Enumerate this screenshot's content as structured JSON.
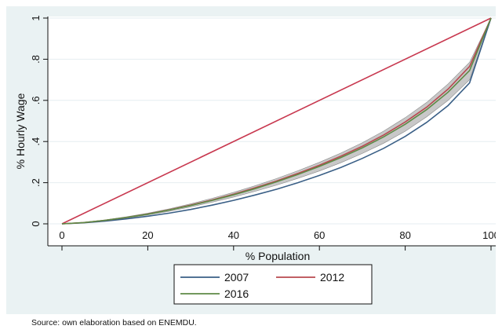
{
  "chart_data": {
    "type": "line",
    "title": "",
    "xlabel": "% Population",
    "ylabel": "% Hourly Wage",
    "xlim": [
      0,
      100
    ],
    "ylim": [
      0,
      1
    ],
    "x_ticks": [
      {
        "value": 0,
        "label": "0"
      },
      {
        "value": 20,
        "label": "20"
      },
      {
        "value": 40,
        "label": "40"
      },
      {
        "value": 60,
        "label": "60"
      },
      {
        "value": 80,
        "label": "80"
      },
      {
        "value": 100,
        "label": "100"
      }
    ],
    "y_ticks": [
      {
        "value": 0,
        "label": "0"
      },
      {
        "value": 0.2,
        "label": ".2"
      },
      {
        "value": 0.4,
        "label": ".4"
      },
      {
        "value": 0.6,
        "label": ".6"
      },
      {
        "value": 0.8,
        "label": ".8"
      },
      {
        "value": 1,
        "label": "1"
      }
    ],
    "grid": "horizontal",
    "legend_position": "bottom",
    "equality_line": {
      "color": "#c8384f",
      "x": [
        0,
        100
      ],
      "y": [
        0,
        1
      ]
    },
    "confidence_band": {
      "color": "#9a9a9a",
      "x": [
        0,
        5,
        10,
        15,
        20,
        25,
        30,
        35,
        40,
        45,
        50,
        55,
        60,
        65,
        70,
        75,
        80,
        85,
        90,
        95,
        100
      ],
      "lower": [
        0,
        0.005,
        0.015,
        0.028,
        0.043,
        0.061,
        0.082,
        0.105,
        0.13,
        0.158,
        0.188,
        0.221,
        0.257,
        0.297,
        0.342,
        0.392,
        0.45,
        0.52,
        0.6,
        0.7,
        1
      ],
      "upper": [
        0,
        0.007,
        0.019,
        0.034,
        0.052,
        0.073,
        0.097,
        0.124,
        0.153,
        0.185,
        0.22,
        0.258,
        0.299,
        0.344,
        0.394,
        0.451,
        0.516,
        0.59,
        0.68,
        0.785,
        1
      ]
    },
    "series": [
      {
        "name": "2007",
        "color": "#3a5f86",
        "x": [
          0,
          5,
          10,
          15,
          20,
          25,
          30,
          35,
          40,
          45,
          50,
          55,
          60,
          65,
          70,
          75,
          80,
          85,
          90,
          95,
          100
        ],
        "y": [
          0,
          0.005,
          0.013,
          0.024,
          0.037,
          0.052,
          0.07,
          0.091,
          0.114,
          0.14,
          0.168,
          0.2,
          0.235,
          0.274,
          0.318,
          0.367,
          0.425,
          0.493,
          0.575,
          0.685,
          1
        ]
      },
      {
        "name": "2012",
        "color": "#b8494f",
        "x": [
          0,
          5,
          10,
          15,
          20,
          25,
          30,
          35,
          40,
          45,
          50,
          55,
          60,
          65,
          70,
          75,
          80,
          85,
          90,
          95,
          100
        ],
        "y": [
          0,
          0.006,
          0.017,
          0.031,
          0.048,
          0.068,
          0.091,
          0.116,
          0.144,
          0.175,
          0.208,
          0.245,
          0.285,
          0.329,
          0.377,
          0.432,
          0.495,
          0.567,
          0.655,
          0.765,
          1
        ]
      },
      {
        "name": "2016",
        "color": "#5e8a46",
        "x": [
          0,
          5,
          10,
          15,
          20,
          25,
          30,
          35,
          40,
          45,
          50,
          55,
          60,
          65,
          70,
          75,
          80,
          85,
          90,
          95,
          100
        ],
        "y": [
          0,
          0.006,
          0.017,
          0.031,
          0.047,
          0.067,
          0.089,
          0.114,
          0.141,
          0.171,
          0.204,
          0.24,
          0.279,
          0.322,
          0.369,
          0.423,
          0.484,
          0.555,
          0.64,
          0.745,
          1
        ]
      }
    ]
  },
  "source_note": "Source: own elaboration based on ENEMDU."
}
